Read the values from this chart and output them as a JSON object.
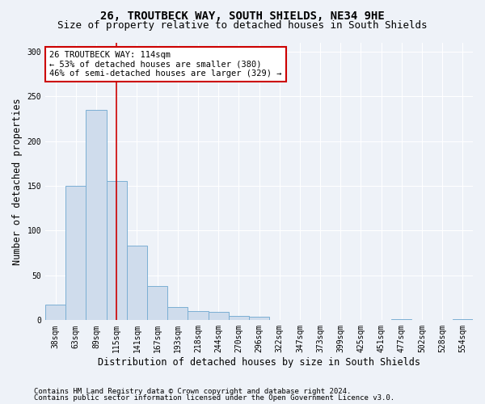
{
  "title": "26, TROUTBECK WAY, SOUTH SHIELDS, NE34 9HE",
  "subtitle": "Size of property relative to detached houses in South Shields",
  "xlabel": "Distribution of detached houses by size in South Shields",
  "ylabel": "Number of detached properties",
  "footnote1": "Contains HM Land Registry data © Crown copyright and database right 2024.",
  "footnote2": "Contains public sector information licensed under the Open Government Licence v3.0.",
  "bar_color": "#cfdcec",
  "bar_edge_color": "#7bafd4",
  "annotation_box_color": "#cc0000",
  "property_line_color": "#cc0000",
  "categories": [
    "38sqm",
    "63sqm",
    "89sqm",
    "115sqm",
    "141sqm",
    "167sqm",
    "193sqm",
    "218sqm",
    "244sqm",
    "270sqm",
    "296sqm",
    "322sqm",
    "347sqm",
    "373sqm",
    "399sqm",
    "425sqm",
    "451sqm",
    "477sqm",
    "502sqm",
    "528sqm",
    "554sqm"
  ],
  "values": [
    17,
    150,
    235,
    155,
    83,
    38,
    15,
    10,
    9,
    5,
    4,
    0,
    0,
    0,
    0,
    0,
    0,
    1,
    0,
    0,
    1
  ],
  "property_bin_index": 3,
  "annotation_text": "26 TROUTBECK WAY: 114sqm\n← 53% of detached houses are smaller (380)\n46% of semi-detached houses are larger (329) →",
  "ylim": [
    0,
    310
  ],
  "yticks": [
    0,
    50,
    100,
    150,
    200,
    250,
    300
  ],
  "background_color": "#eef2f8",
  "grid_color": "#ffffff",
  "title_fontsize": 10,
  "subtitle_fontsize": 9,
  "axis_label_fontsize": 8.5,
  "tick_fontsize": 7,
  "footnote_fontsize": 6.5
}
